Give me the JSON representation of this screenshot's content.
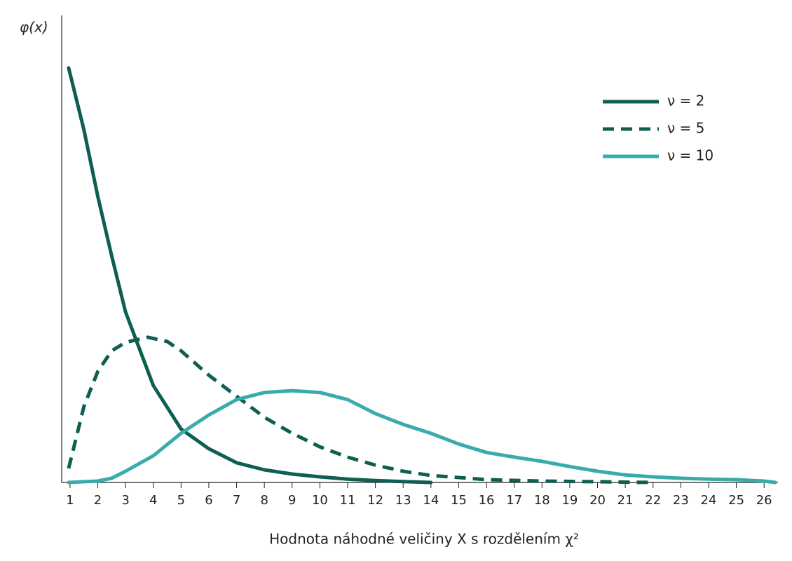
{
  "chart_data": {
    "type": "line",
    "y_label": "φ(x)",
    "x_label": "Hodnota náhodné veličiny X s rozdělením χ²",
    "xlim": [
      0.7,
      26.5
    ],
    "xticks": [
      1,
      2,
      3,
      4,
      5,
      6,
      7,
      8,
      9,
      10,
      11,
      12,
      13,
      14,
      15,
      16,
      17,
      18,
      19,
      20,
      21,
      22,
      23,
      24,
      25,
      26
    ],
    "ylim": [
      0,
      1
    ],
    "legend": "upper right",
    "series": [
      {
        "name": "ν = 2",
        "color": "#0e5f52",
        "line_style": "solid",
        "x": [
          0.95,
          1.5,
          2,
          2.5,
          3,
          4,
          5,
          6,
          7,
          8,
          9,
          10,
          11,
          12,
          13,
          14
        ],
        "values": [
          0.885,
          0.753,
          0.611,
          0.484,
          0.364,
          0.207,
          0.114,
          0.072,
          0.042,
          0.027,
          0.018,
          0.012,
          0.007,
          0.004,
          0.002,
          0
        ]
      },
      {
        "name": "ν = 5",
        "color": "#0e5f52",
        "line_style": "dashed",
        "x": [
          0.95,
          1.5,
          2,
          2.5,
          3,
          3.8,
          4.5,
          5,
          6,
          7,
          8,
          9,
          10,
          11,
          12,
          13,
          14,
          16,
          18,
          22
        ],
        "values": [
          0.03,
          0.162,
          0.237,
          0.281,
          0.299,
          0.31,
          0.301,
          0.281,
          0.229,
          0.184,
          0.139,
          0.105,
          0.076,
          0.054,
          0.037,
          0.024,
          0.015,
          0.006,
          0.003,
          0
        ]
      },
      {
        "name": "ν = 10",
        "color": "#3aabab",
        "line_style": "solid",
        "x": [
          0.95,
          2,
          2.5,
          3,
          4,
          5,
          6,
          7,
          8,
          9,
          10,
          11,
          12,
          13,
          14,
          15,
          16,
          17,
          18,
          19,
          20,
          21,
          22,
          23,
          24,
          25,
          26,
          26.4
        ],
        "values": [
          0,
          0.003,
          0.009,
          0.024,
          0.057,
          0.105,
          0.144,
          0.177,
          0.192,
          0.196,
          0.192,
          0.177,
          0.147,
          0.124,
          0.105,
          0.082,
          0.064,
          0.054,
          0.045,
          0.034,
          0.024,
          0.016,
          0.012,
          0.009,
          0.007,
          0.006,
          0.003,
          0
        ]
      }
    ]
  }
}
